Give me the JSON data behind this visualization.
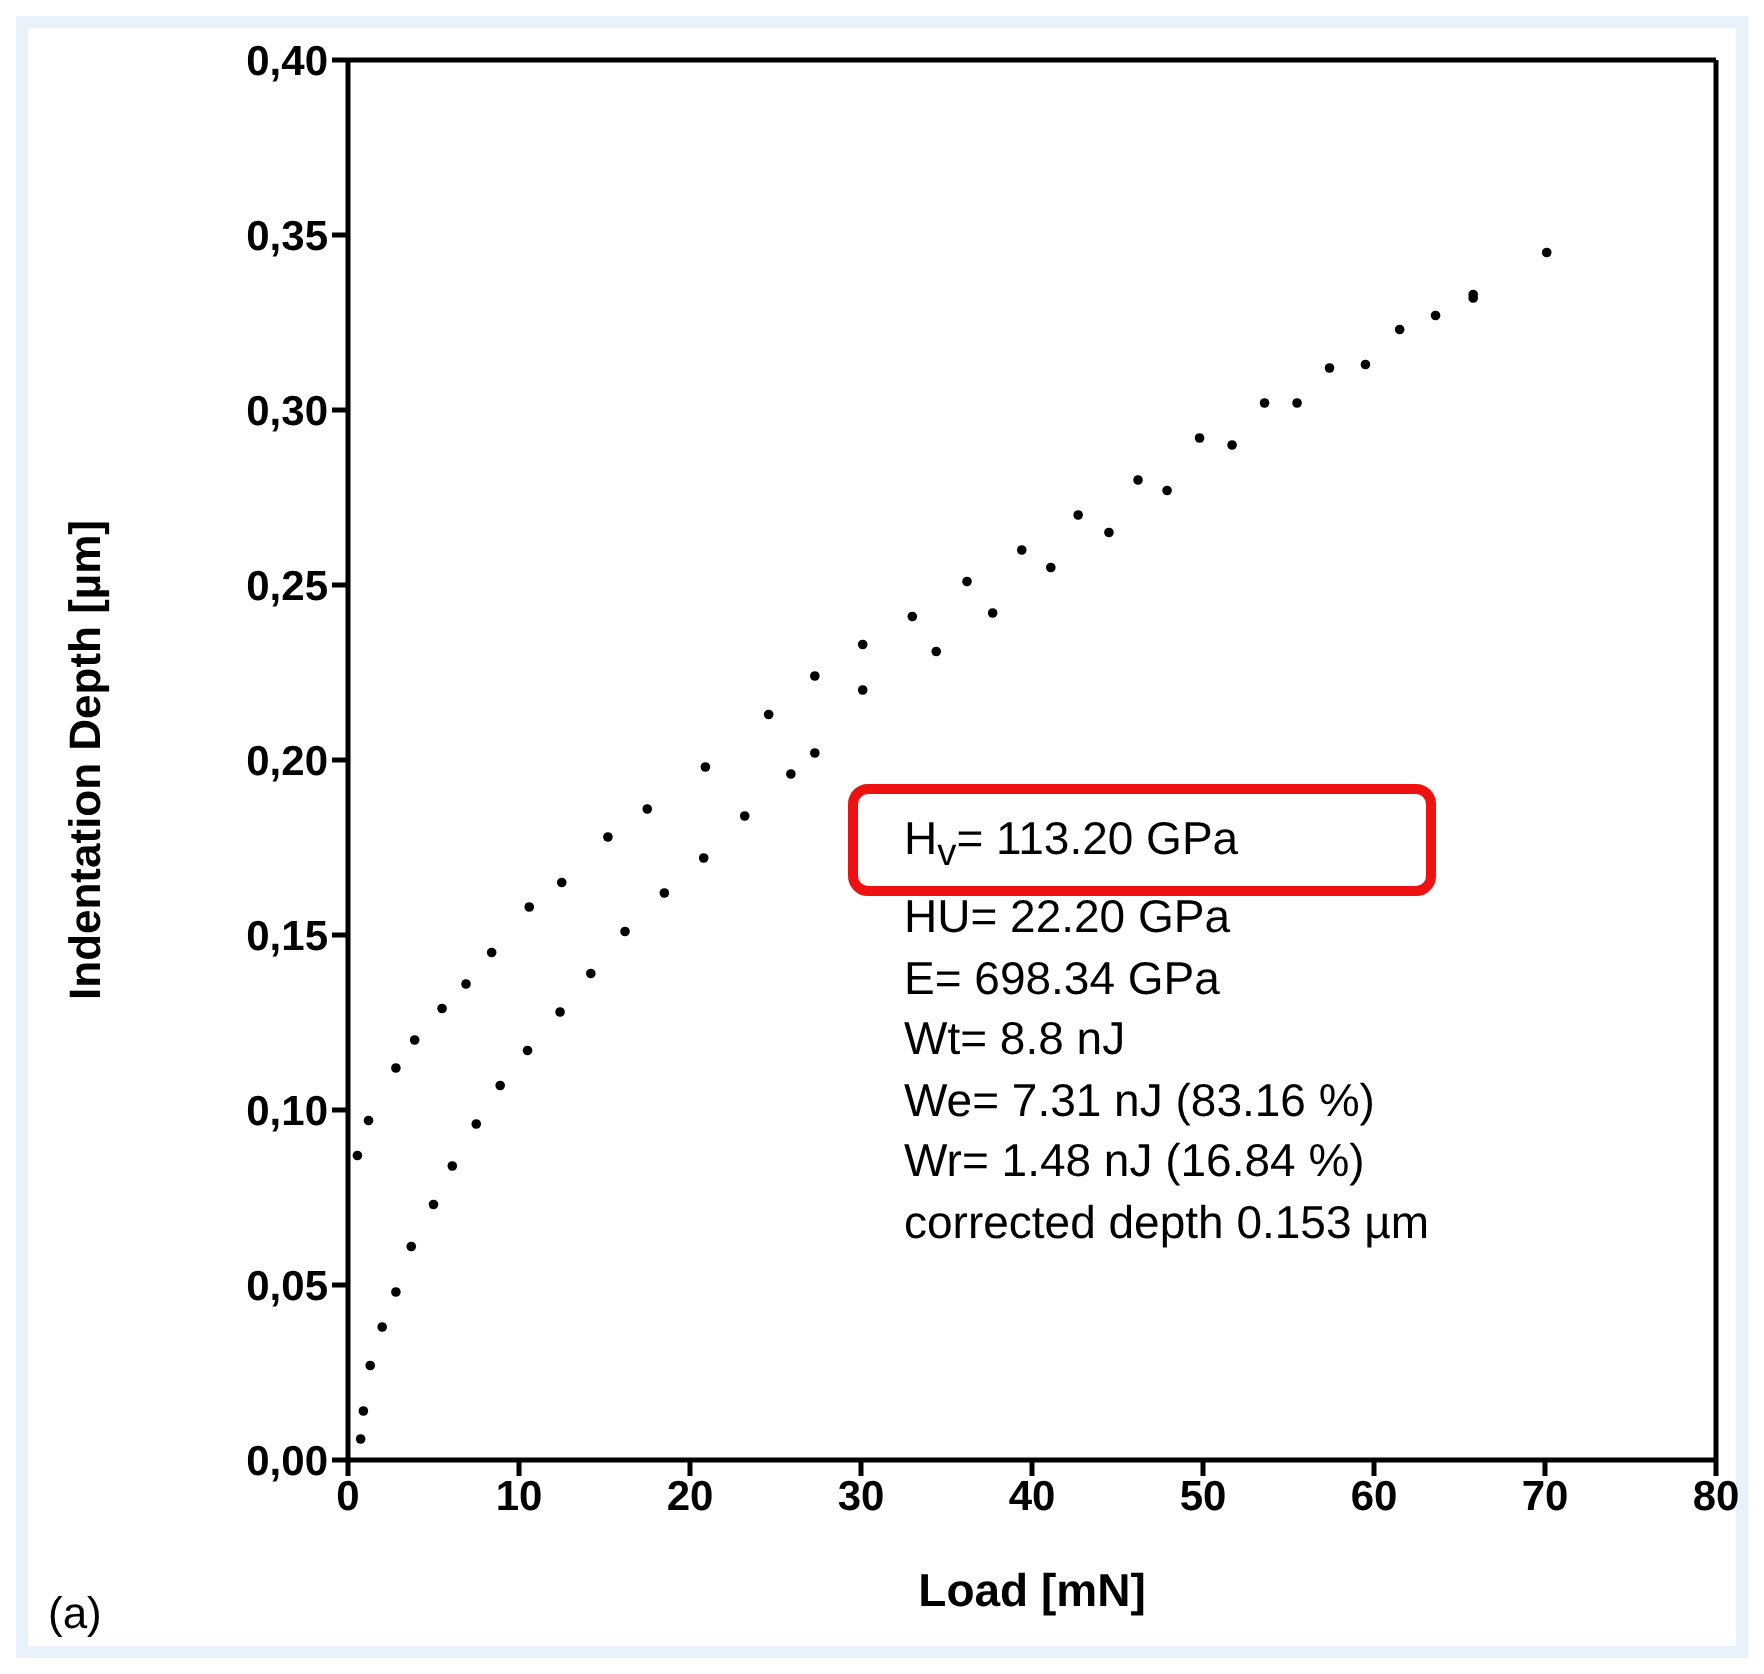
{
  "chart_data": {
    "type": "scatter",
    "xlabel": "Load [mN]",
    "ylabel": "Indentation Depth  [µm]",
    "xlim": [
      0,
      80
    ],
    "xticks": [
      0,
      10,
      20,
      30,
      40,
      50,
      60,
      70,
      80
    ],
    "ylim": [
      0,
      0.4
    ],
    "yticks": [
      {
        "value": 0,
        "label": "0,00"
      },
      {
        "value": 0.05,
        "label": "0,05"
      },
      {
        "value": 0.1,
        "label": "0,10"
      },
      {
        "value": 0.15,
        "label": "0,15"
      },
      {
        "value": 0.2,
        "label": "0,20"
      },
      {
        "value": 0.25,
        "label": "0,25"
      },
      {
        "value": 0.3,
        "label": "0,30"
      },
      {
        "value": 0.35,
        "label": "0,35"
      },
      {
        "value": 0.4,
        "label": "0,40"
      }
    ],
    "grid": false,
    "legend": false,
    "marker": "circle",
    "series": [
      {
        "color": "#000000",
        "x": [
          0.74,
          0.9,
          1.3,
          2.0,
          2.8,
          3.7,
          5.0,
          6.1,
          7.5,
          8.9,
          10.5,
          12.4,
          14.2,
          16.2,
          18.5,
          20.8,
          23.2,
          25.9,
          27.3,
          30.1,
          34.4,
          37.7,
          41.1,
          44.5,
          47.9,
          51.7,
          55.5,
          59.5,
          63.6,
          65.8
        ],
        "values": [
          0.006,
          0.014,
          0.027,
          0.038,
          0.048,
          0.061,
          0.073,
          0.084,
          0.096,
          0.107,
          0.117,
          0.128,
          0.139,
          0.151,
          0.162,
          0.172,
          0.184,
          0.196,
          0.202,
          0.22,
          0.231,
          0.242,
          0.255,
          0.265,
          0.277,
          0.29,
          0.302,
          0.313,
          0.327,
          0.332
        ]
      },
      {
        "color": "#000000",
        "x": [
          0.55,
          1.2,
          2.8,
          3.9,
          5.5,
          6.9,
          8.4,
          10.6,
          12.5,
          15.2,
          17.5,
          20.9,
          24.6,
          27.3,
          30.1,
          33.0,
          36.2,
          39.4,
          42.7,
          46.2,
          49.8,
          53.6,
          57.4,
          61.5,
          65.8,
          70.1
        ],
        "values": [
          0.087,
          0.097,
          0.112,
          0.12,
          0.129,
          0.136,
          0.145,
          0.158,
          0.165,
          0.178,
          0.186,
          0.198,
          0.213,
          0.224,
          0.233,
          0.241,
          0.251,
          0.26,
          0.27,
          0.28,
          0.292,
          0.302,
          0.312,
          0.323,
          0.333,
          0.345
        ]
      }
    ],
    "annotations": [
      "H$_{v}$= 113.20 GPa",
      "HU= 22.20 GPa",
      "E= 698.34 GPa",
      "Wt= 8.8 nJ",
      "We= 7.31 nJ (83.16 %)",
      "Wr= 1.48 nJ (16.84 %)",
      "corrected depth 0.153 µm",
      "(a)"
    ]
  }
}
